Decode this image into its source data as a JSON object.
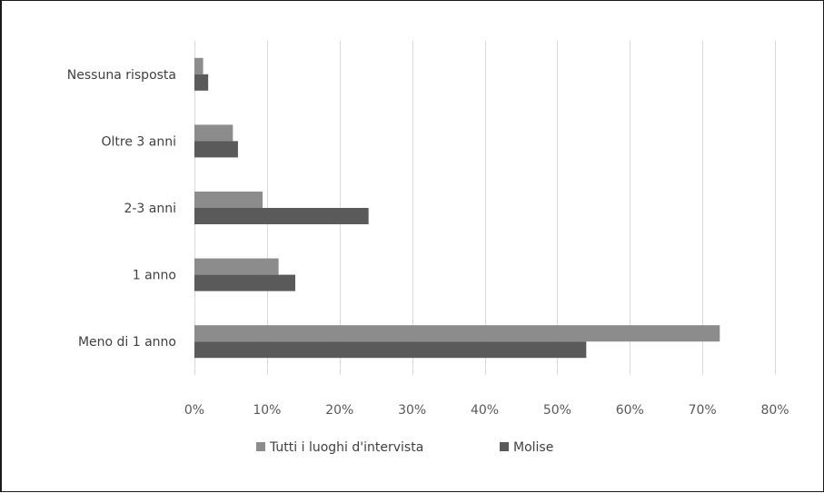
{
  "chart_data": {
    "type": "bar",
    "orientation": "horizontal",
    "title": "",
    "xlabel": "",
    "ylabel": "",
    "categories": [
      "Nessuna risposta",
      "Oltre 3 anni",
      "2-3 anni",
      "1 anno",
      "Meno di 1 anno"
    ],
    "series": [
      {
        "name": "Tutti i luoghi d'intervista",
        "color": "#8c8c8c",
        "values": [
          1.2,
          5.3,
          9.4,
          11.6,
          72.4
        ]
      },
      {
        "name": "Molise",
        "color": "#5a5a5a",
        "values": [
          1.9,
          6.0,
          24.0,
          13.9,
          54.0
        ]
      }
    ],
    "xlim": [
      0,
      80
    ],
    "xticks": [
      0,
      10,
      20,
      30,
      40,
      50,
      60,
      70,
      80
    ],
    "xtick_labels": [
      "0%",
      "10%",
      "20%",
      "30%",
      "40%",
      "50%",
      "60%",
      "70%",
      "80%"
    ],
    "grid": "vertical",
    "legend_position": "bottom"
  }
}
